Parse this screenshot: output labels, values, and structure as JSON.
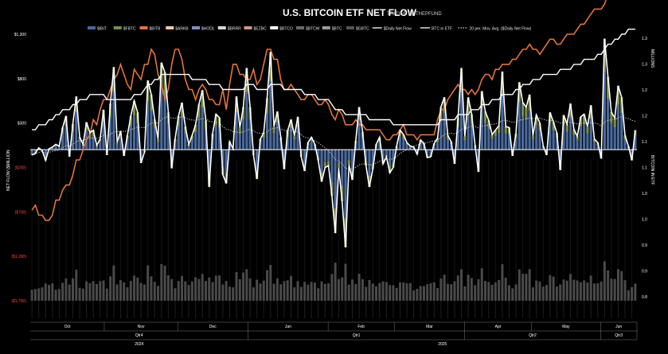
{
  "title": "U.S. BITCOIN ETF NET FLOW",
  "subtitle": "TRADER T@THEPFUND",
  "y_left_label": "NET FLOW ($MILLION",
  "y_right_label_top": "MILLIONS",
  "y_right_label_mid": "BITCOIN IN ETF",
  "legend": [
    {
      "label": "$IBIT",
      "color": "#4a6a9e",
      "kind": "bar"
    },
    {
      "label": "$FBTC",
      "color": "#7a8c4c",
      "kind": "bar"
    },
    {
      "label": "$BITB",
      "color": "#e0743c",
      "kind": "bar"
    },
    {
      "label": "$ARKB",
      "color": "#f4c9a8",
      "kind": "bar"
    },
    {
      "label": "$HODL",
      "color": "#8a8ac0",
      "kind": "bar"
    },
    {
      "label": "$BRRR",
      "color": "#d8d8d8",
      "kind": "bar"
    },
    {
      "label": "$EZBC",
      "color": "#c89a7a",
      "kind": "bar"
    },
    {
      "label": "$BTCO",
      "color": "#ffffff",
      "kind": "bar"
    },
    {
      "label": "$BTCW",
      "color": "#6a6a6a",
      "kind": "bar"
    },
    {
      "label": "$BTC",
      "color": "#9a9a9a",
      "kind": "bar"
    },
    {
      "label": "$GBTC",
      "color": "#555555",
      "kind": "bar"
    },
    {
      "label": "$Daily Net Flow",
      "color": "#ffffff",
      "kind": "line"
    },
    {
      "label": "BTC in ETF",
      "color": "#ffffff",
      "kind": "line"
    },
    {
      "label": "20 per. Mov. Avg. ($Daily Net Flow)",
      "color": "#cccccc",
      "kind": "dotted"
    }
  ],
  "chart_data": {
    "type": "bar",
    "left_ticks": [
      {
        "v": 1300,
        "label": "$1,300",
        "color": "#ffffff"
      },
      {
        "v": 800,
        "label": "$800",
        "color": "#ffffff"
      },
      {
        "v": 300,
        "label": "$300",
        "color": "#ffffff"
      },
      {
        "v": -200,
        "label": "($200)",
        "color": "#ff4a3a"
      },
      {
        "v": -700,
        "label": "($700)",
        "color": "#ff4a3a"
      },
      {
        "v": -1200,
        "label": "($1,200)",
        "color": "#ff4a3a"
      },
      {
        "v": -1700,
        "label": "($1,700)",
        "color": "#ff4a3a"
      }
    ],
    "left_range": [
      -1700,
      1300
    ],
    "right_ticks": [
      "1.3",
      "1.3",
      "1.2",
      "1.2",
      "1.1",
      "1.1",
      "1.0",
      "1.0",
      "0.9",
      "0.9",
      "0.8"
    ],
    "right_range": [
      0.8,
      1.33
    ],
    "months": [
      {
        "label": "Oct",
        "start": 0.0,
        "end": 0.122
      },
      {
        "label": "Nov",
        "start": 0.122,
        "end": 0.243
      },
      {
        "label": "Dec",
        "start": 0.243,
        "end": 0.359
      },
      {
        "label": "Jan",
        "start": 0.359,
        "end": 0.491
      },
      {
        "label": "Feb",
        "start": 0.491,
        "end": 0.6
      },
      {
        "label": "Mar",
        "start": 0.6,
        "end": 0.716
      },
      {
        "label": "Apr",
        "start": 0.716,
        "end": 0.826
      },
      {
        "label": "May",
        "start": 0.826,
        "end": 0.94
      },
      {
        "label": "Jun",
        "start": 0.94,
        "end": 1.0
      }
    ],
    "quarters": [
      {
        "label": "Qtr4",
        "start": 0.0,
        "end": 0.359
      },
      {
        "label": "Qtr1",
        "start": 0.359,
        "end": 0.716
      },
      {
        "label": "Qtr2",
        "start": 0.716,
        "end": 0.94
      },
      {
        "label": "Qtr3",
        "start": 0.94,
        "end": 1.0
      }
    ],
    "years": [
      {
        "label": "2024",
        "start": 0.0,
        "end": 0.359
      },
      {
        "label": "2025",
        "start": 0.359,
        "end": 1.0
      }
    ],
    "daily_net_flow": [
      -60,
      -40,
      20,
      -10,
      -120,
      10,
      30,
      60,
      40,
      250,
      380,
      -80,
      290,
      600,
      140,
      60,
      310,
      190,
      220,
      50,
      120,
      450,
      -60,
      520,
      930,
      80,
      210,
      -70,
      160,
      380,
      550,
      420,
      -150,
      -30,
      780,
      620,
      340,
      120,
      980,
      870,
      420,
      -210,
      120,
      380,
      530,
      260,
      60,
      160,
      280,
      510,
      670,
      330,
      -420,
      180,
      400,
      360,
      -280,
      -380,
      90,
      10,
      600,
      250,
      480,
      920,
      480,
      -60,
      -330,
      120,
      190,
      580,
      1100,
      260,
      430,
      140,
      -220,
      210,
      340,
      160,
      370,
      -80,
      -240,
      80,
      140,
      60,
      -120,
      -360,
      -200,
      -180,
      -520,
      -940,
      -210,
      -580,
      -1100,
      -170,
      -340,
      100,
      480,
      200,
      -180,
      -420,
      -220,
      60,
      140,
      -160,
      -80,
      -260,
      -200,
      40,
      220,
      170,
      80,
      40,
      30,
      -50,
      110,
      70,
      -90,
      -80,
      70,
      130,
      480,
      590,
      160,
      90,
      -160,
      360,
      920,
      150,
      590,
      400,
      50,
      -250,
      660,
      430,
      330,
      170,
      220,
      270,
      880,
      260,
      250,
      -70,
      180,
      760,
      530,
      480,
      620,
      160,
      390,
      300,
      40,
      -60,
      420,
      310,
      190,
      -230,
      390,
      290,
      520,
      230,
      150,
      370,
      400,
      260,
      500,
      120,
      80,
      -100,
      1250,
      820,
      420,
      360,
      720,
      590,
      160,
      40,
      -120,
      220
    ],
    "moving_avg_20": [
      -60,
      -50,
      -30,
      -20,
      -40,
      -30,
      -20,
      -10,
      -5,
      20,
      50,
      40,
      60,
      90,
      100,
      105,
      120,
      125,
      135,
      130,
      140,
      160,
      150,
      170,
      200,
      200,
      210,
      205,
      210,
      225,
      240,
      255,
      250,
      250,
      275,
      300,
      305,
      300,
      340,
      360,
      375,
      355,
      355,
      360,
      370,
      360,
      340,
      335,
      330,
      340,
      350,
      350,
      320,
      315,
      310,
      300,
      260,
      230,
      225,
      200,
      200,
      190,
      200,
      220,
      230,
      210,
      190,
      185,
      185,
      200,
      230,
      240,
      250,
      235,
      220,
      215,
      220,
      210,
      200,
      170,
      140,
      130,
      120,
      100,
      80,
      50,
      20,
      -10,
      -60,
      -110,
      -130,
      -160,
      -210,
      -210,
      -220,
      -200,
      -170,
      -160,
      -160,
      -170,
      -170,
      -150,
      -130,
      -120,
      -110,
      -110,
      -100,
      -80,
      -40,
      -20,
      0,
      20,
      40,
      50,
      70,
      70,
      80,
      90,
      100,
      110,
      140,
      170,
      180,
      185,
      180,
      195,
      230,
      235,
      250,
      265,
      260,
      245,
      265,
      270,
      280,
      285,
      290,
      300,
      330,
      330,
      320,
      310,
      310,
      330,
      340,
      345,
      355,
      350,
      355,
      355,
      345,
      330,
      330,
      325,
      320,
      300,
      305,
      305,
      310,
      300,
      290,
      300,
      300,
      295,
      305,
      300,
      290,
      270,
      310,
      330,
      335,
      340,
      360,
      370,
      360,
      350,
      330,
      320
    ],
    "btc_in_etf_orange": [
      0.98,
      0.99,
      0.97,
      0.97,
      0.96,
      0.96,
      0.97,
      1.0,
      1.0,
      1.02,
      1.03,
      1.03,
      1.05,
      1.08,
      1.08,
      1.1,
      1.12,
      1.13,
      1.16,
      1.15,
      1.18,
      1.2,
      1.2,
      1.22,
      1.24,
      1.25,
      1.27,
      1.25,
      1.23,
      1.22,
      1.26,
      1.25,
      1.24,
      1.27,
      1.27,
      1.3,
      1.29,
      1.25,
      1.23,
      1.2,
      1.22,
      1.27,
      1.3,
      1.3,
      1.28,
      1.24,
      1.22,
      1.22,
      1.2,
      1.22,
      1.23,
      1.22,
      1.2,
      1.2,
      1.19,
      1.19,
      1.22,
      1.18,
      1.23,
      1.27,
      1.27,
      1.25,
      1.25,
      1.24,
      1.24,
      1.26,
      1.23,
      1.24,
      1.27,
      1.3,
      1.3,
      1.28,
      1.28,
      1.24,
      1.22,
      1.22,
      1.23,
      1.22,
      1.21,
      1.2,
      1.2,
      1.21,
      1.21,
      1.2,
      1.19,
      1.19,
      1.2,
      1.19,
      1.17,
      1.16,
      1.18,
      1.17,
      1.15,
      1.15,
      1.15,
      1.16,
      1.15,
      1.15,
      1.14,
      1.14,
      1.14,
      1.14,
      1.14,
      1.13,
      1.12,
      1.12,
      1.13,
      1.13,
      1.14,
      1.15,
      1.13,
      1.13,
      1.13,
      1.12,
      1.13,
      1.13,
      1.13,
      1.13,
      1.13,
      1.16,
      1.18,
      1.18,
      1.2,
      1.21,
      1.22,
      1.23,
      1.22,
      1.22,
      1.21,
      1.22,
      1.21,
      1.22,
      1.24,
      1.25,
      1.25,
      1.24,
      1.26,
      1.26,
      1.27,
      1.27,
      1.27,
      1.28,
      1.28,
      1.29,
      1.3,
      1.3,
      1.31,
      1.3,
      1.3,
      1.29,
      1.3,
      1.31,
      1.32,
      1.32,
      1.31,
      1.31,
      1.32,
      1.33,
      1.33,
      1.33,
      1.34,
      1.35,
      1.35,
      1.36,
      1.37,
      1.38,
      1.38,
      1.38,
      1.39,
      1.41,
      1.42,
      1.42,
      1.43,
      1.44,
      1.44,
      1.43,
      1.43,
      1.43
    ],
    "btc_in_etf_white": [
      1.14,
      1.14,
      1.15,
      1.15,
      1.15,
      1.16,
      1.16,
      1.17,
      1.17,
      1.18,
      1.18,
      1.18,
      1.19,
      1.19,
      1.2,
      1.2,
      1.2,
      1.21,
      1.21,
      1.21,
      1.21,
      1.21,
      1.2,
      1.2,
      1.2,
      1.2,
      1.2,
      1.2,
      1.2,
      1.2,
      1.21,
      1.21,
      1.21,
      1.22,
      1.23,
      1.23,
      1.24,
      1.24,
      1.25,
      1.25,
      1.25,
      1.25,
      1.25,
      1.25,
      1.25,
      1.25,
      1.25,
      1.24,
      1.24,
      1.24,
      1.24,
      1.24,
      1.23,
      1.23,
      1.23,
      1.23,
      1.22,
      1.22,
      1.22,
      1.22,
      1.22,
      1.22,
      1.22,
      1.23,
      1.23,
      1.23,
      1.22,
      1.22,
      1.22,
      1.22,
      1.23,
      1.23,
      1.23,
      1.23,
      1.22,
      1.22,
      1.22,
      1.22,
      1.22,
      1.22,
      1.21,
      1.21,
      1.21,
      1.21,
      1.2,
      1.2,
      1.2,
      1.2,
      1.19,
      1.18,
      1.18,
      1.18,
      1.17,
      1.17,
      1.17,
      1.17,
      1.17,
      1.17,
      1.17,
      1.16,
      1.16,
      1.16,
      1.16,
      1.16,
      1.16,
      1.16,
      1.15,
      1.15,
      1.15,
      1.15,
      1.15,
      1.15,
      1.15,
      1.15,
      1.15,
      1.15,
      1.15,
      1.15,
      1.15,
      1.15,
      1.16,
      1.16,
      1.16,
      1.16,
      1.16,
      1.17,
      1.17,
      1.17,
      1.17,
      1.18,
      1.18,
      1.18,
      1.19,
      1.19,
      1.19,
      1.2,
      1.2,
      1.2,
      1.21,
      1.21,
      1.21,
      1.21,
      1.22,
      1.22,
      1.23,
      1.23,
      1.23,
      1.24,
      1.24,
      1.24,
      1.25,
      1.25,
      1.25,
      1.25,
      1.25,
      1.26,
      1.26,
      1.26,
      1.26,
      1.27,
      1.27,
      1.27,
      1.28,
      1.28,
      1.28,
      1.28,
      1.29,
      1.29,
      1.3,
      1.31,
      1.31,
      1.32,
      1.32,
      1.33,
      1.33,
      1.34,
      1.34,
      1.34
    ]
  }
}
